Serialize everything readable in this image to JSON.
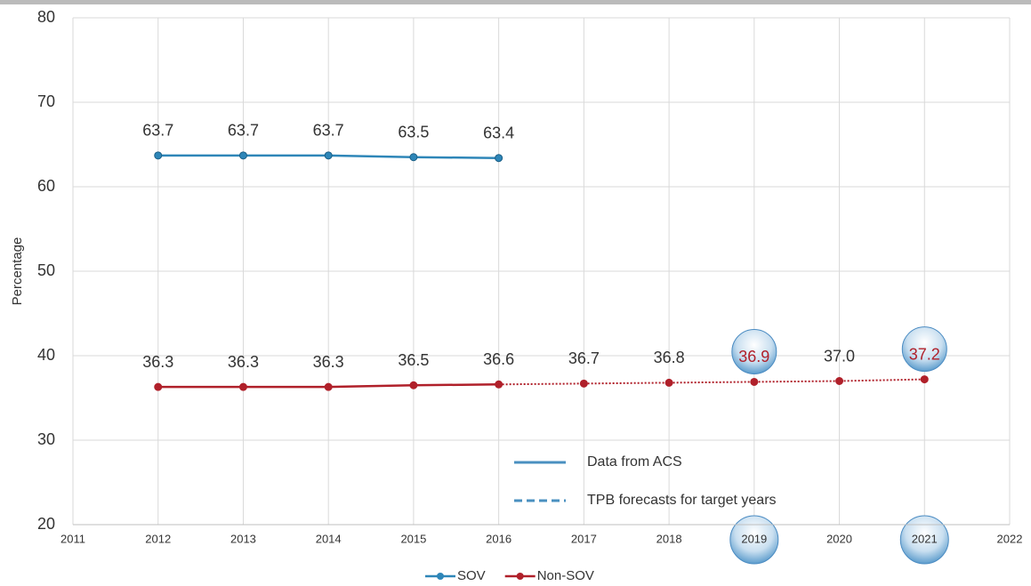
{
  "chart_data": {
    "type": "line",
    "x": [
      2012,
      2013,
      2014,
      2015,
      2016,
      2017,
      2018,
      2019,
      2020,
      2021
    ],
    "series": [
      {
        "name": "SOV",
        "color": "#2e86b8",
        "values": [
          63.7,
          63.7,
          63.7,
          63.5,
          63.4,
          null,
          null,
          null,
          null,
          null
        ],
        "value_labels": [
          "63.7",
          "63.7",
          "63.7",
          "63.5",
          "63.4",
          null,
          null,
          null,
          null,
          null
        ]
      },
      {
        "name": "Non-SOV",
        "color": "#b0202a",
        "values": [
          36.3,
          36.3,
          36.3,
          36.5,
          36.6,
          36.7,
          36.8,
          36.9,
          37.0,
          37.2
        ],
        "value_labels": [
          "36.3",
          "36.3",
          "36.3",
          "36.5",
          "36.6",
          "36.7",
          "36.8",
          "36.9",
          "37.0",
          "37.2"
        ]
      }
    ],
    "forecast_from": 2016,
    "highlight_x": [
      2019,
      2021
    ],
    "ylabel": "Percentage",
    "xlim": [
      2011,
      2022
    ],
    "xticks": [
      2011,
      2012,
      2013,
      2014,
      2015,
      2016,
      2017,
      2018,
      2019,
      2020,
      2021,
      2022
    ],
    "ylim": [
      20,
      80
    ],
    "yticks": [
      20,
      30,
      40,
      50,
      60,
      70,
      80
    ],
    "grid": true,
    "legend": "bottom",
    "annotations": [
      {
        "text": "Data from ACS",
        "style": "solid"
      },
      {
        "text": "TPB forecasts for target years",
        "style": "dashed"
      }
    ]
  }
}
